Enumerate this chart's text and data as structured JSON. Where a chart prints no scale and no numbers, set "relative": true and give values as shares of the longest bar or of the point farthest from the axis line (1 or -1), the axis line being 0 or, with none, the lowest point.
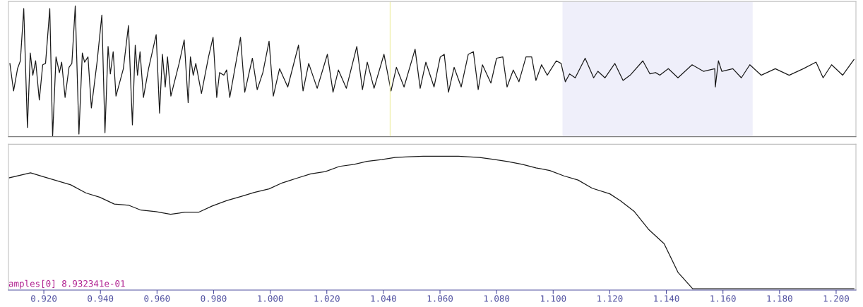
{
  "chart_data": [
    {
      "type": "line",
      "relative": true,
      "xlim": [
        0.9075,
        1.207
      ],
      "tick_labels": false,
      "grid": false,
      "ref_lines": [
        {
          "axis": "x",
          "value": 1.0424,
          "color": "#f0f0b0"
        }
      ],
      "bands": [
        {
          "axis": "x",
          "from": 1.1033,
          "to": 1.1705,
          "color": "#3030c0"
        }
      ],
      "series": [
        {
          "color": "#1a1a1a",
          "x": [
            0.908,
            0.9093,
            0.9107,
            0.9117,
            0.9129,
            0.9142,
            0.9152,
            0.9161,
            0.9171,
            0.9184,
            0.9196,
            0.9206,
            0.9221,
            0.9231,
            0.9243,
            0.9255,
            0.9263,
            0.9275,
            0.9289,
            0.9299,
            0.9311,
            0.9324,
            0.9336,
            0.9344,
            0.9356,
            0.9368,
            0.9388,
            0.9405,
            0.9416,
            0.9427,
            0.9435,
            0.9445,
            0.9455,
            0.9481,
            0.9499,
            0.9513,
            0.9523,
            0.9531,
            0.954,
            0.9552,
            0.957,
            0.9597,
            0.9609,
            0.9619,
            0.9629,
            0.9637,
            0.9649,
            0.9678,
            0.9696,
            0.971,
            0.9718,
            0.9728,
            0.9737,
            0.9757,
            0.9782,
            0.9798,
            0.9811,
            0.9821,
            0.9836,
            0.9846,
            0.9857,
            0.9875,
            0.9895,
            0.991,
            0.9937,
            0.9954,
            0.9974,
            0.9996,
            1.0011,
            1.0033,
            1.0062,
            1.01,
            1.0116,
            1.0136,
            1.0166,
            1.0202,
            1.0222,
            1.0241,
            1.0269,
            1.0306,
            1.0326,
            1.0343,
            1.0367,
            1.0402,
            1.0427,
            1.0446,
            1.0473,
            1.0512,
            1.053,
            1.055,
            1.0579,
            1.0601,
            1.0615,
            1.063,
            1.065,
            1.0675,
            1.07,
            1.0718,
            1.0735,
            1.075,
            1.078,
            1.08,
            1.0822,
            1.0837,
            1.0859,
            1.0879,
            1.0904,
            1.0924,
            1.0939,
            1.0959,
            1.0979,
            1.1011,
            1.1028,
            1.1043,
            1.1058,
            1.1078,
            1.1113,
            1.1143,
            1.1158,
            1.1183,
            1.1218,
            1.1247,
            1.1272,
            1.1317,
            1.1342,
            1.1362,
            1.1377,
            1.1407,
            1.1441,
            1.1491,
            1.1531,
            1.1571,
            1.1573,
            1.1584,
            1.1596,
            1.1635,
            1.1665,
            1.1695,
            1.1735,
            1.1785,
            1.1834,
            1.1884,
            1.1929,
            1.1954,
            1.1984,
            1.2023,
            1.2063
          ],
          "values": [
            0.56,
            0.35,
            0.52,
            0.58,
            0.98,
            0.07,
            0.64,
            0.47,
            0.58,
            0.28,
            0.55,
            0.56,
            0.98,
            0,
            0.61,
            0.49,
            0.57,
            0.3,
            0.53,
            0.56,
            1.0,
            0.02,
            0.64,
            0.57,
            0.61,
            0.22,
            0.57,
            0.93,
            0.03,
            0.69,
            0.48,
            0.65,
            0.31,
            0.52,
            0.85,
            0.09,
            0.7,
            0.47,
            0.65,
            0.3,
            0.52,
            0.78,
            0.18,
            0.63,
            0.38,
            0.61,
            0.31,
            0.56,
            0.74,
            0.26,
            0.61,
            0.47,
            0.56,
            0.33,
            0.61,
            0.76,
            0.3,
            0.49,
            0.47,
            0.51,
            0.3,
            0.52,
            0.76,
            0.34,
            0.6,
            0.36,
            0.49,
            0.73,
            0.31,
            0.52,
            0.38,
            0.7,
            0.35,
            0.56,
            0.37,
            0.63,
            0.34,
            0.51,
            0.37,
            0.69,
            0.36,
            0.57,
            0.37,
            0.63,
            0.35,
            0.53,
            0.38,
            0.67,
            0.37,
            0.57,
            0.38,
            0.61,
            0.63,
            0.34,
            0.53,
            0.38,
            0.63,
            0.65,
            0.36,
            0.55,
            0.41,
            0.6,
            0.61,
            0.38,
            0.51,
            0.42,
            0.61,
            0.61,
            0.43,
            0.55,
            0.47,
            0.58,
            0.56,
            0.42,
            0.48,
            0.45,
            0.6,
            0.45,
            0.5,
            0.45,
            0.56,
            0.43,
            0.47,
            0.58,
            0.48,
            0.49,
            0.47,
            0.52,
            0.45,
            0.55,
            0.5,
            0.52,
            0.38,
            0.58,
            0.5,
            0.52,
            0.45,
            0.55,
            0.47,
            0.52,
            0.47,
            0.52,
            0.57,
            0.45,
            0.55,
            0.47,
            0.59
          ]
        }
      ]
    },
    {
      "type": "line",
      "relative": true,
      "xlim": [
        0.9075,
        1.207
      ],
      "tick_labels": "x",
      "grid": false,
      "xticks": [
        {
          "value": 0.92,
          "label": "0.920"
        },
        {
          "value": 0.94,
          "label": "0.940"
        },
        {
          "value": 0.96,
          "label": "0.960"
        },
        {
          "value": 0.98,
          "label": "0.980"
        },
        {
          "value": 1.0,
          "label": "1.000"
        },
        {
          "value": 1.02,
          "label": "1.020"
        },
        {
          "value": 1.04,
          "label": "1.040"
        },
        {
          "value": 1.06,
          "label": "1.060"
        },
        {
          "value": 1.08,
          "label": "1.080"
        },
        {
          "value": 1.1,
          "label": "1.100"
        },
        {
          "value": 1.12,
          "label": "1.120"
        },
        {
          "value": 1.14,
          "label": "1.140"
        },
        {
          "value": 1.16,
          "label": "1.160"
        },
        {
          "value": 1.18,
          "label": "1.180"
        },
        {
          "value": 1.2,
          "label": "1.200"
        }
      ],
      "annotations": [
        "amples[0] 8.932341e-01"
      ],
      "series": [
        {
          "color": "#1a1a1a",
          "x": [
            0.9078,
            0.9153,
            0.9198,
            0.9295,
            0.9349,
            0.9397,
            0.9449,
            0.9501,
            0.9543,
            0.9596,
            0.9648,
            0.9698,
            0.9747,
            0.9795,
            0.9847,
            0.9897,
            0.9944,
            0.9996,
            1.0043,
            1.0096,
            1.0143,
            1.0195,
            1.0245,
            1.0297,
            1.0342,
            1.0394,
            1.0441,
            1.0491,
            1.0541,
            1.0665,
            1.074,
            1.079,
            1.0839,
            1.0891,
            1.0939,
            1.0988,
            1.1038,
            1.1088,
            1.1138,
            1.12,
            1.1237,
            1.1287,
            1.1337,
            1.1392,
            1.1441,
            1.1493,
            1.1536,
            1.2063
          ],
          "values": [
            0.837,
            0.874,
            0.845,
            0.784,
            0.722,
            0.691,
            0.639,
            0.629,
            0.593,
            0.582,
            0.562,
            0.577,
            0.577,
            0.624,
            0.665,
            0.696,
            0.727,
            0.753,
            0.799,
            0.835,
            0.866,
            0.884,
            0.923,
            0.938,
            0.961,
            0.974,
            0.99,
            0.995,
            1,
            1,
            0.99,
            0.976,
            0.959,
            0.938,
            0.912,
            0.892,
            0.851,
            0.82,
            0.758,
            0.716,
            0.665,
            0.582,
            0.448,
            0.34,
            0.124,
            0,
            0,
            0
          ]
        }
      ]
    }
  ]
}
